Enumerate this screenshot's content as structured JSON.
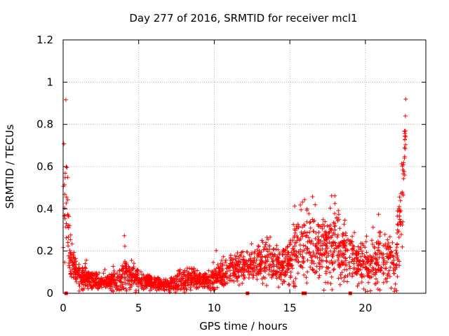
{
  "chart_data": {
    "type": "scatter",
    "title": "Day 277 of 2016, SRMTID for receiver mcl1",
    "xlabel": "GPS time / hours",
    "ylabel": "SRMTID / TECUs",
    "xlim": [
      0,
      24
    ],
    "ylim": [
      0,
      1.2
    ],
    "xticks": [
      0,
      5,
      10,
      15,
      20
    ],
    "xtick_labels": [
      "0",
      "5",
      "10",
      "15",
      "20"
    ],
    "yticks": [
      0,
      0.2,
      0.4,
      0.6,
      0.8,
      1.0,
      1.2
    ],
    "ytick_labels": [
      "0",
      "0.2",
      "0.4",
      "0.6",
      "0.8",
      "1",
      "1.2"
    ],
    "grid": true,
    "marker": "+",
    "series_color": "#ff0000",
    "gap_marker_times": [
      0.2,
      12.2,
      15.9,
      16.0,
      19.0
    ],
    "envelope": {
      "x": [
        0.0,
        0.25,
        0.35,
        0.5,
        0.8,
        1.2,
        2.0,
        3.0,
        3.8,
        4.0,
        4.3,
        5.0,
        6.0,
        6.5,
        7.0,
        7.5,
        8.0,
        8.5,
        9.0,
        9.5,
        10.0,
        10.5,
        11.0,
        11.5,
        12.0,
        12.5,
        13.0,
        13.5,
        14.0,
        14.5,
        15.0,
        15.3,
        15.6,
        16.0,
        16.5,
        17.0,
        17.5,
        18.0,
        18.5,
        19.0,
        19.4,
        19.8,
        20.2,
        20.6,
        21.0,
        21.4,
        21.8,
        22.0,
        22.3,
        22.5,
        22.7
      ],
      "mean": [
        0.35,
        0.5,
        0.25,
        0.15,
        0.1,
        0.08,
        0.06,
        0.05,
        0.06,
        0.1,
        0.09,
        0.06,
        0.05,
        0.04,
        0.04,
        0.05,
        0.06,
        0.07,
        0.06,
        0.06,
        0.07,
        0.09,
        0.1,
        0.11,
        0.12,
        0.14,
        0.15,
        0.16,
        0.14,
        0.12,
        0.15,
        0.2,
        0.22,
        0.25,
        0.22,
        0.2,
        0.22,
        0.25,
        0.2,
        0.18,
        0.15,
        0.15,
        0.13,
        0.15,
        0.17,
        0.15,
        0.12,
        0.12,
        0.35,
        0.5,
        0.85
      ],
      "spread": [
        0.3,
        0.22,
        0.12,
        0.07,
        0.05,
        0.04,
        0.03,
        0.03,
        0.04,
        0.08,
        0.05,
        0.03,
        0.02,
        0.02,
        0.02,
        0.03,
        0.04,
        0.04,
        0.03,
        0.03,
        0.04,
        0.05,
        0.05,
        0.05,
        0.05,
        0.05,
        0.06,
        0.07,
        0.06,
        0.06,
        0.08,
        0.12,
        0.12,
        0.14,
        0.12,
        0.1,
        0.12,
        0.13,
        0.12,
        0.1,
        0.09,
        0.09,
        0.08,
        0.09,
        0.1,
        0.09,
        0.08,
        0.1,
        0.18,
        0.15,
        0.15
      ]
    },
    "point_count": 2200,
    "seed": 277
  }
}
